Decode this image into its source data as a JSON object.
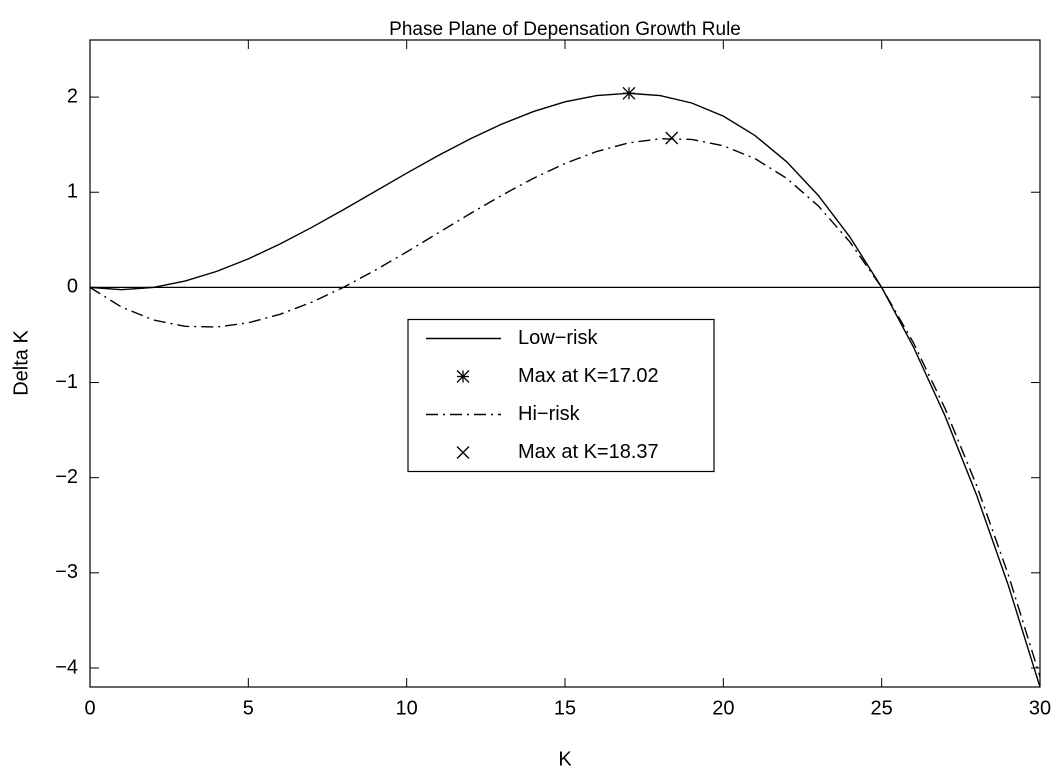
{
  "chart_data": {
    "type": "line",
    "title": "Phase Plane of Depensation Growth Rule",
    "xlabel": "K",
    "ylabel": "Delta K",
    "x": [
      0,
      1,
      2,
      3,
      4,
      5,
      6,
      7,
      8,
      9,
      10,
      11,
      12,
      13,
      14,
      15,
      16,
      17,
      18,
      19,
      20,
      21,
      22,
      23,
      24,
      25,
      26,
      27,
      28,
      29,
      30
    ],
    "series": [
      {
        "name": "Low−risk",
        "color": "#000000",
        "style": "solid",
        "values": [
          0,
          -0.024,
          0,
          0.066,
          0.168,
          0.3,
          0.456,
          0.63,
          0.816,
          1.008,
          1.2,
          1.386,
          1.56,
          1.716,
          1.848,
          1.95,
          2.016,
          2.04,
          2.016,
          1.938,
          1.8,
          1.596,
          1.32,
          0.966,
          0.528,
          0,
          -0.624,
          -1.35,
          -2.184,
          -3.132,
          -4.2
        ]
      },
      {
        "name": "Hi−risk",
        "color": "#000000",
        "style": "dashdot",
        "values": [
          0,
          -0.208,
          -0.342,
          -0.409,
          -0.417,
          -0.372,
          -0.283,
          -0.156,
          0,
          0.179,
          0.372,
          0.573,
          0.774,
          0.967,
          1.146,
          1.302,
          1.428,
          1.518,
          1.562,
          1.555,
          1.488,
          1.354,
          1.146,
          0.856,
          0.476,
          0,
          -0.58,
          -1.272,
          -2.083,
          -3.021,
          -4.092
        ]
      }
    ],
    "markers": [
      {
        "name": "Max at K=17.02",
        "marker": "asterisk",
        "color": "#000000",
        "x": 17.02,
        "y": 2.04
      },
      {
        "name": "Max at K=18.37",
        "marker": "x",
        "color": "#000000",
        "x": 18.37,
        "y": 1.57
      }
    ],
    "legend_order": [
      "series.0",
      "markers.0",
      "series.1",
      "markers.1"
    ],
    "hline": 0,
    "xlim": [
      0,
      30
    ],
    "ylim": [
      -4.2,
      2.6
    ],
    "xticks": [
      0,
      5,
      10,
      15,
      20,
      25,
      30
    ],
    "yticks": [
      {
        "value": -4,
        "label": "−4"
      },
      {
        "value": -3,
        "label": "−3"
      },
      {
        "value": -2,
        "label": "−2"
      },
      {
        "value": -1,
        "label": "−1"
      },
      0,
      1,
      2
    ],
    "legend": "center"
  }
}
